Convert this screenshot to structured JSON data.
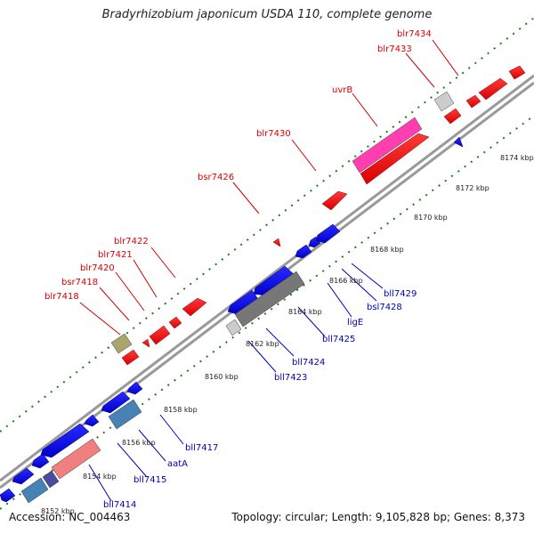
{
  "title": "Bradyrhizobium japonicum USDA 110, complete genome",
  "footer": {
    "accession": "Accession: NC_004463",
    "summary": "Topology: circular; Length: 9,105,828 bp; Genes: 8,373"
  },
  "colors": {
    "forward_label": "#dd0000",
    "reverse_label": "#0000bb",
    "backbone": "#999999",
    "tick": "#1f7a1f"
  },
  "kbp_labels": [
    "8154 kbp",
    "8156 kbp",
    "8158 kbp",
    "8160 kbp",
    "8162 kbp",
    "8164 kbp",
    "8166 kbp",
    "8168 kbp",
    "8170 kbp",
    "8172 kbp",
    "8174 kbp"
  ],
  "forward_labels": [
    "blr7418",
    "bsr7418",
    "blr7420",
    "blr7421",
    "blr7422",
    "bsr7426",
    "blr7430",
    "uvrB",
    "blr7433",
    "blr7434"
  ],
  "reverse_labels": [
    "bll7414",
    "bll7415",
    "aatA",
    "bll7417",
    "bll7423",
    "bll7424",
    "bll7425",
    "ligE",
    "bsl7428",
    "bll7429"
  ],
  "cut_label": "8152 kbp"
}
